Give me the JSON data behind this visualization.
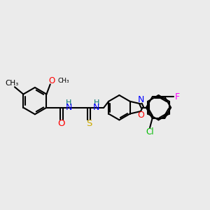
{
  "bg_color": "#ebebeb",
  "bond_color": "#000000",
  "atom_colors": {
    "O": "#ff0000",
    "N": "#0000ff",
    "S": "#ccaa00",
    "F": "#ff00ff",
    "Cl": "#00bb00",
    "H": "#007070"
  },
  "figsize": [
    3.0,
    3.0
  ],
  "dpi": 100
}
